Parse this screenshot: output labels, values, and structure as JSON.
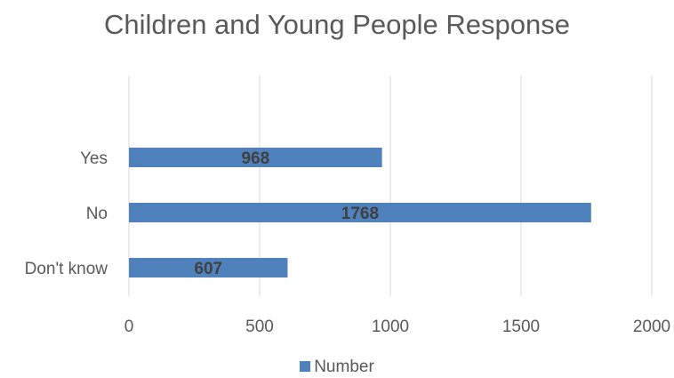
{
  "chart_data": {
    "type": "bar",
    "orientation": "horizontal",
    "title": "Children and Young People Response",
    "categories": [
      "Yes",
      "No",
      "Don't know"
    ],
    "series": [
      {
        "name": "Number",
        "values": [
          968,
          1768,
          607
        ],
        "color": "#4f81bd"
      }
    ],
    "xlim": [
      0,
      2000
    ],
    "x_ticks": [
      0,
      500,
      1000,
      1500,
      2000
    ],
    "grid": true,
    "legend": "bottom",
    "data_labels": true
  }
}
